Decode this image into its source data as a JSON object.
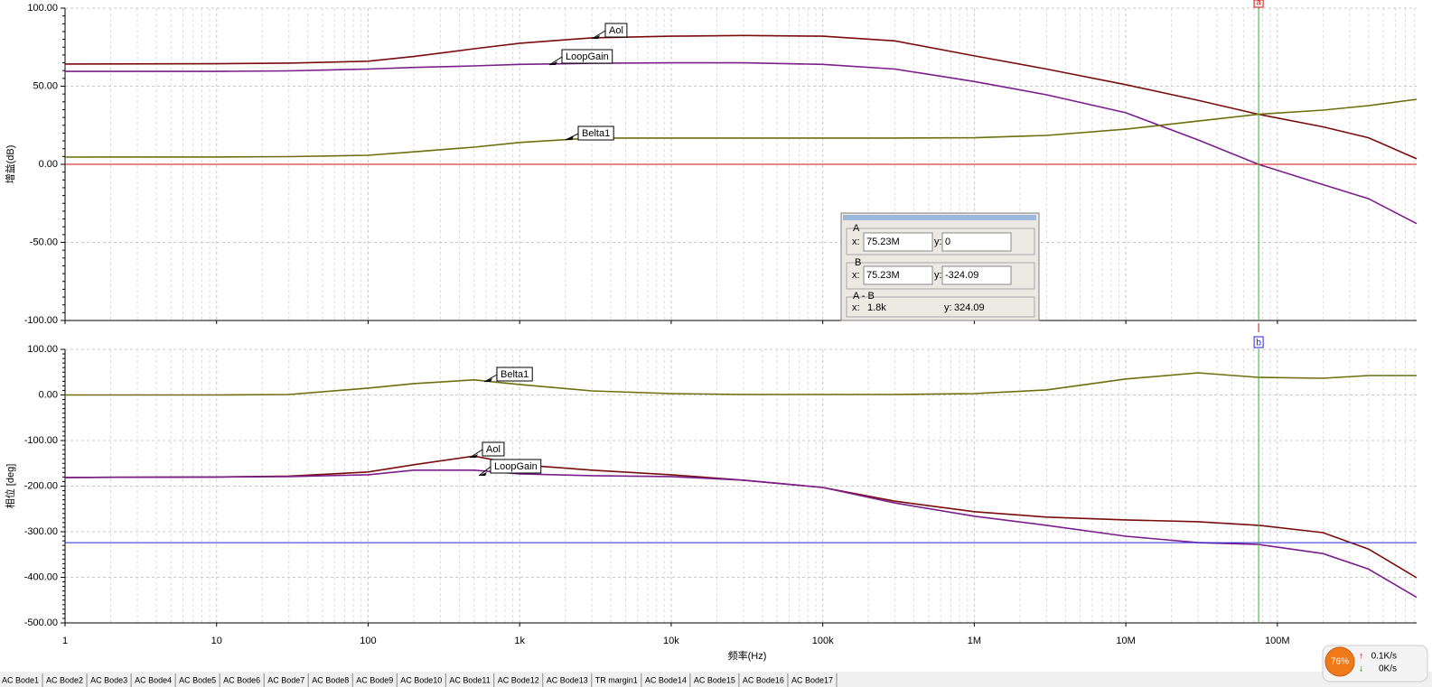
{
  "chart_data": [
    {
      "type": "line",
      "y_label": "增益(dB)",
      "log_x": true,
      "grid": true,
      "xlim": [
        1,
        830000000
      ],
      "xticks": [
        1,
        10,
        100,
        1000,
        10000,
        100000,
        1000000,
        10000000,
        100000000
      ],
      "ylim": [
        -100,
        100
      ],
      "yticks": [
        {
          "value": -100,
          "label": "-100.00"
        },
        {
          "value": -50,
          "label": "-50.00"
        },
        {
          "value": 0,
          "label": "0.00"
        },
        {
          "value": 50,
          "label": "50.00"
        },
        {
          "value": 100,
          "label": "100.00"
        }
      ],
      "x": [
        1,
        10,
        30,
        100,
        200,
        500,
        1000,
        3000,
        10000,
        30000,
        100000,
        300000,
        1000000,
        3000000,
        10000000,
        30000000,
        75000000,
        200000000,
        400000000,
        830000000
      ],
      "series": [
        {
          "name": "Aol",
          "color": "#7a0c0c",
          "values": [
            64.2,
            64.4,
            64.8,
            66,
            69,
            74,
            77.5,
            81,
            82,
            82.5,
            82,
            79,
            69.4,
            61,
            51,
            41,
            32,
            24,
            17,
            3.5
          ]
        },
        {
          "name": "LoopGain",
          "color": "#7b1d8c",
          "values": [
            59.5,
            59.5,
            59.8,
            61,
            62,
            63,
            64,
            64.7,
            65,
            65,
            64,
            61,
            53,
            44.5,
            33,
            15.6,
            0,
            -13,
            -22,
            -38
          ]
        },
        {
          "name": "Belta1",
          "color": "#6e6e0c",
          "values": [
            4.6,
            4.7,
            4.9,
            5.8,
            8,
            11,
            14,
            16.8,
            16.8,
            16.8,
            16.8,
            16.8,
            17,
            18.5,
            22.5,
            27.7,
            32,
            34.7,
            37.6,
            41.6
          ]
        }
      ]
    },
    {
      "type": "line",
      "y_label": "相位 [deg]",
      "x_label": "频率(Hz)",
      "log_x": true,
      "grid": true,
      "xlim": [
        1,
        830000000
      ],
      "xticks": [
        1,
        10,
        100,
        {
          "value": 1000,
          "label": "1k"
        },
        {
          "value": 10000,
          "label": "10k"
        },
        {
          "value": 100000,
          "label": "100k"
        },
        {
          "value": 1000000,
          "label": "1M"
        },
        {
          "value": 10000000,
          "label": "10M"
        },
        {
          "value": 100000000,
          "label": "100M"
        }
      ],
      "ylim": [
        -500,
        100
      ],
      "yticks": [
        {
          "value": -500,
          "label": "-500.00"
        },
        {
          "value": -400,
          "label": "-400.00"
        },
        {
          "value": -300,
          "label": "-300.00"
        },
        {
          "value": -200,
          "label": "-200.00"
        },
        {
          "value": -100,
          "label": "-100.00"
        },
        {
          "value": 0,
          "label": "0.00"
        },
        {
          "value": 100,
          "label": "100.00"
        }
      ],
      "x": [
        1,
        10,
        30,
        100,
        200,
        500,
        1000,
        3000,
        10000,
        30000,
        100000,
        300000,
        1000000,
        3000000,
        10000000,
        30000000,
        75000000,
        200000000,
        400000000,
        830000000
      ],
      "series": [
        {
          "name": "Belta1",
          "color": "#6e6e0c",
          "values": [
            0,
            0,
            1,
            15,
            25,
            33,
            23,
            9,
            3,
            1,
            1,
            1,
            3,
            11,
            35,
            48.5,
            38.6,
            36.6,
            42.6,
            42.6
          ]
        },
        {
          "name": "Aol",
          "color": "#7a0c0c",
          "values": [
            -181,
            -180,
            -178,
            -169,
            -153,
            -134,
            -153,
            -165,
            -175,
            -187,
            -203,
            -233,
            -256,
            -268,
            -274,
            -278,
            -286,
            -302,
            -338,
            -401
          ]
        },
        {
          "name": "LoopGain",
          "color": "#7b1d8c",
          "values": [
            -181,
            -180,
            -179,
            -175,
            -165,
            -165,
            -173,
            -177,
            -179,
            -187,
            -203,
            -237,
            -266,
            -286,
            -310,
            -324,
            -328,
            -348,
            -382,
            -444
          ]
        }
      ]
    }
  ],
  "cursor": {
    "a_name": "a",
    "b_name": "b",
    "a_title": "A",
    "b_title": "B",
    "diff_title": "A - B",
    "x_label": "x:",
    "y_label": "y:",
    "a_x": {
      "value": 75230000,
      "label": "75.23M"
    },
    "a_y": 0,
    "b_x": {
      "value": 75230000,
      "label": "75.23M"
    },
    "b_y": -324.09,
    "diff_x": {
      "value": 1800,
      "label": "1.8k"
    },
    "diff_y": 324.09
  },
  "tabs": [
    "AC Bode1",
    "AC Bode2",
    "AC Bode3",
    "AC Bode4",
    "AC Bode5",
    "AC Bode6",
    "AC Bode7",
    "AC Bode8",
    "AC Bode9",
    "AC Bode10",
    "AC Bode11",
    "AC Bode12",
    "AC Bode13",
    "TR margin1",
    "AC Bode14",
    "AC Bode15",
    "AC Bode16",
    "AC Bode17"
  ],
  "monitor": {
    "percent": "76%",
    "up": "0.1K/s",
    "down": "0K/s"
  }
}
